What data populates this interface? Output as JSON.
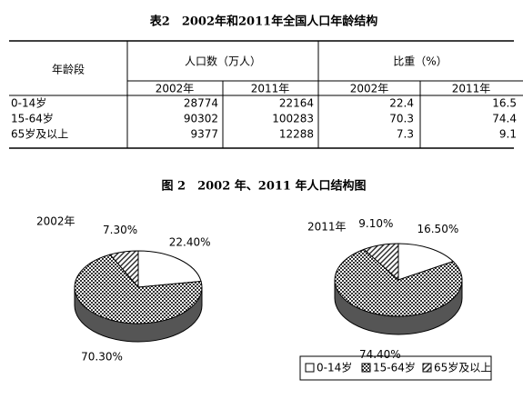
{
  "document": {
    "title": "表2　2002年和2011年全国人口年龄结构",
    "table": {
      "header": [
        "年龄段",
        "人口数（万人）",
        "比重（%）"
      ],
      "subheader": [
        "2002年",
        "2011年",
        "2002年",
        "2011年"
      ],
      "rows": [
        [
          "0-14岁",
          28774,
          22164,
          22.4,
          16.5
        ],
        [
          "15-64岁",
          90302,
          100283,
          70.3,
          74.4
        ],
        [
          "65岁及以上",
          9377,
          12288,
          7.3,
          9.1
        ]
      ]
    },
    "figure_title": "图 2　2002 年、2011 年人口结构图"
  },
  "chart_data": {
    "type": "pie",
    "categories": [
      "0-14岁",
      "15-64岁",
      "65岁及以上"
    ],
    "series": [
      {
        "name": "2002年",
        "values": [
          22.4,
          70.3,
          7.3
        ],
        "value_labels": [
          "22.40%",
          "70.30%",
          "7.30%"
        ]
      },
      {
        "name": "2011年",
        "values": [
          16.5,
          74.4,
          9.1
        ],
        "value_labels": [
          "16.50%",
          "74.40%",
          "9.10%"
        ]
      }
    ]
  }
}
